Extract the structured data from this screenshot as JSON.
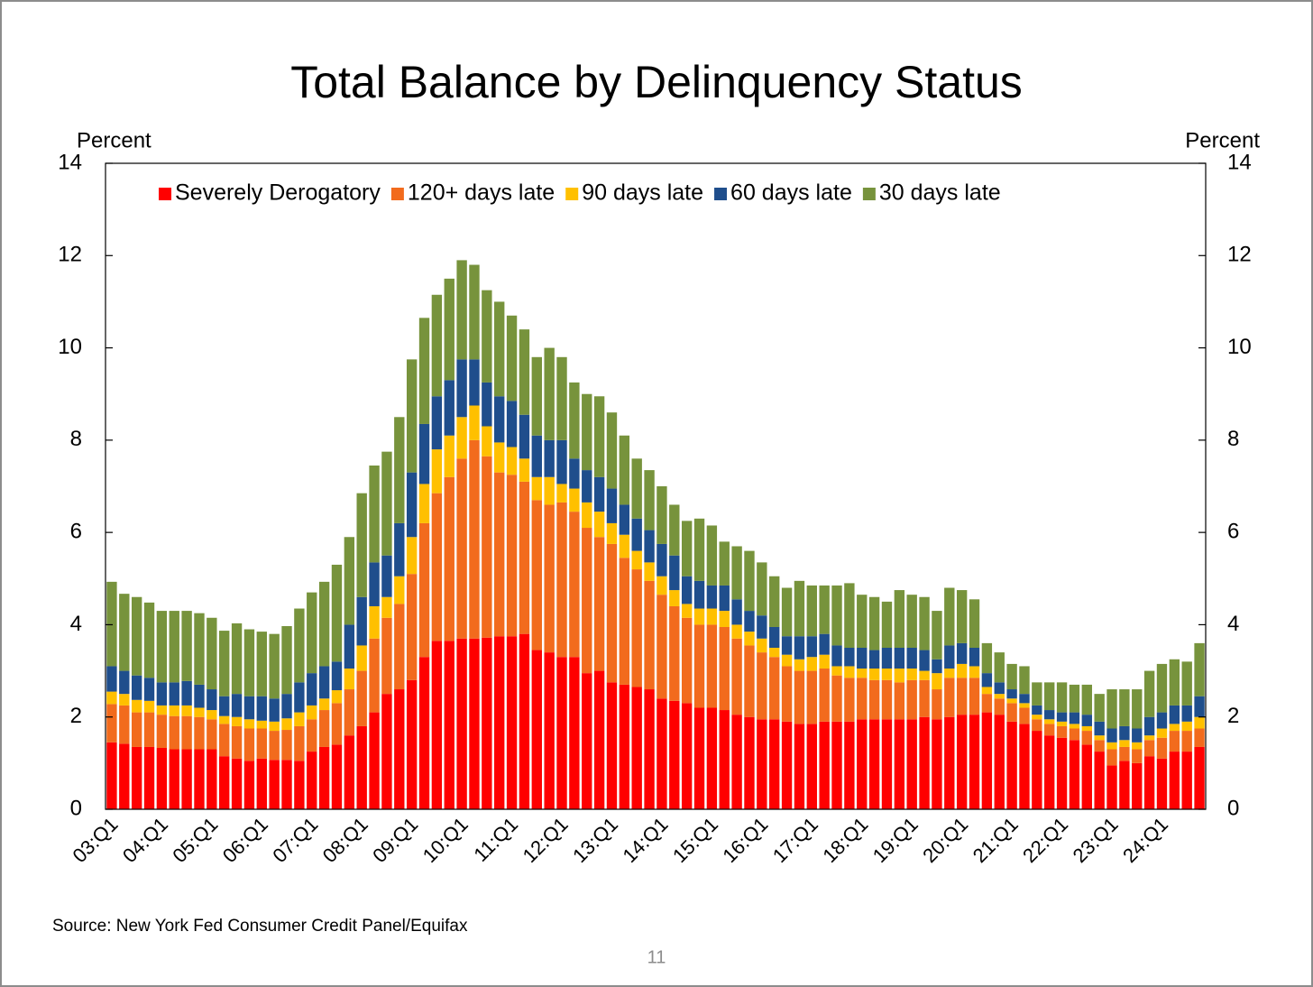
{
  "chart_data": {
    "type": "stacked_bar",
    "title": "Total Balance by Delinquency Status",
    "y_label": "Percent",
    "y2_label": "Percent",
    "source": "Source: New York Fed Consumer Credit Panel/Equifax",
    "categories": [
      "03:Q1",
      null,
      null,
      null,
      "04:Q1",
      null,
      null,
      null,
      "05:Q1",
      null,
      null,
      null,
      "06:Q1",
      null,
      null,
      null,
      "07:Q1",
      null,
      null,
      null,
      "08:Q1",
      null,
      null,
      null,
      "09:Q1",
      null,
      null,
      null,
      "10:Q1",
      null,
      null,
      null,
      "11:Q1",
      null,
      null,
      null,
      "12:Q1",
      null,
      null,
      null,
      "13:Q1",
      null,
      null,
      null,
      "14:Q1",
      null,
      null,
      null,
      "15:Q1",
      null,
      null,
      null,
      "16:Q1",
      null,
      null,
      null,
      "17:Q1",
      null,
      null,
      null,
      "18:Q1",
      null,
      null,
      null,
      "19:Q1",
      null,
      null,
      null,
      "20:Q1",
      null,
      null,
      null,
      "21:Q1",
      null,
      null,
      null,
      "22:Q1",
      null,
      null,
      null,
      "23:Q1",
      null,
      null,
      null,
      "24:Q1",
      null,
      null,
      null
    ],
    "series": [
      {
        "name": "Severely Derogatory",
        "color": "#ff0000",
        "values": [
          1.45,
          1.42,
          1.35,
          1.35,
          1.33,
          1.3,
          1.3,
          1.3,
          1.3,
          1.15,
          1.1,
          1.05,
          1.1,
          1.07,
          1.07,
          1.05,
          1.25,
          1.35,
          1.4,
          1.6,
          1.8,
          2.1,
          2.5,
          2.6,
          2.8,
          3.3,
          3.65,
          3.65,
          3.7,
          3.7,
          3.72,
          3.75,
          3.75,
          3.8,
          3.45,
          3.4,
          3.3,
          3.3,
          2.95,
          3.0,
          2.75,
          2.7,
          2.65,
          2.6,
          2.4,
          2.35,
          2.3,
          2.2,
          2.2,
          2.15,
          2.05,
          2.0,
          1.95,
          1.95,
          1.9,
          1.85,
          1.85,
          1.9,
          1.9,
          1.9,
          1.95,
          1.95,
          1.95,
          1.95,
          1.95,
          2.0,
          1.95,
          2.0,
          2.05,
          2.05,
          2.1,
          2.05,
          1.9,
          1.85,
          1.7,
          1.6,
          1.55,
          1.5,
          1.4,
          1.25,
          0.95,
          1.05,
          1.0,
          1.15,
          1.1,
          1.25,
          1.25,
          1.35
        ]
      },
      {
        "name": "120+ days late",
        "color": "#f26b1d",
        "values": [
          0.83,
          0.83,
          0.75,
          0.75,
          0.72,
          0.72,
          0.72,
          0.7,
          0.65,
          0.7,
          0.7,
          0.7,
          0.65,
          0.63,
          0.65,
          0.75,
          0.7,
          0.8,
          0.9,
          1.0,
          1.2,
          1.6,
          1.65,
          1.85,
          2.3,
          2.9,
          3.2,
          3.55,
          3.9,
          4.3,
          3.93,
          3.55,
          3.5,
          3.3,
          3.25,
          3.2,
          3.35,
          3.15,
          3.15,
          2.9,
          3.0,
          2.75,
          2.55,
          2.35,
          2.25,
          2.05,
          1.85,
          1.8,
          1.8,
          1.8,
          1.65,
          1.55,
          1.45,
          1.35,
          1.2,
          1.15,
          1.15,
          1.15,
          1.0,
          0.95,
          0.9,
          0.85,
          0.85,
          0.8,
          0.85,
          0.8,
          0.65,
          0.85,
          0.8,
          0.8,
          0.4,
          0.35,
          0.4,
          0.35,
          0.25,
          0.25,
          0.25,
          0.25,
          0.3,
          0.25,
          0.35,
          0.3,
          0.3,
          0.35,
          0.45,
          0.45,
          0.45,
          0.4
        ]
      },
      {
        "name": "90 days late",
        "color": "#ffc000",
        "values": [
          0.27,
          0.25,
          0.27,
          0.25,
          0.2,
          0.23,
          0.23,
          0.2,
          0.2,
          0.17,
          0.2,
          0.2,
          0.17,
          0.2,
          0.25,
          0.3,
          0.3,
          0.25,
          0.28,
          0.45,
          0.55,
          0.7,
          0.45,
          0.6,
          0.8,
          0.85,
          0.95,
          0.9,
          0.9,
          0.75,
          0.65,
          0.65,
          0.6,
          0.5,
          0.5,
          0.6,
          0.4,
          0.5,
          0.55,
          0.55,
          0.45,
          0.5,
          0.4,
          0.4,
          0.4,
          0.35,
          0.3,
          0.35,
          0.35,
          0.35,
          0.3,
          0.3,
          0.3,
          0.2,
          0.25,
          0.25,
          0.3,
          0.3,
          0.2,
          0.25,
          0.2,
          0.25,
          0.25,
          0.3,
          0.25,
          0.2,
          0.35,
          0.2,
          0.3,
          0.25,
          0.15,
          0.1,
          0.1,
          0.1,
          0.1,
          0.1,
          0.1,
          0.1,
          0.1,
          0.1,
          0.15,
          0.15,
          0.15,
          0.1,
          0.2,
          0.15,
          0.2,
          0.25
        ]
      },
      {
        "name": "60 days late",
        "color": "#1f4e8c",
        "values": [
          0.55,
          0.5,
          0.53,
          0.5,
          0.5,
          0.5,
          0.53,
          0.5,
          0.45,
          0.43,
          0.5,
          0.5,
          0.53,
          0.5,
          0.53,
          0.65,
          0.7,
          0.7,
          0.62,
          0.95,
          1.05,
          0.95,
          0.9,
          1.15,
          1.4,
          1.3,
          1.15,
          1.2,
          1.25,
          1.0,
          0.95,
          1.0,
          1.0,
          0.95,
          0.9,
          0.8,
          0.95,
          0.65,
          0.7,
          0.75,
          0.75,
          0.65,
          0.7,
          0.7,
          0.7,
          0.75,
          0.6,
          0.6,
          0.5,
          0.55,
          0.55,
          0.45,
          0.5,
          0.45,
          0.4,
          0.5,
          0.45,
          0.45,
          0.45,
          0.4,
          0.45,
          0.4,
          0.45,
          0.45,
          0.45,
          0.45,
          0.3,
          0.5,
          0.45,
          0.4,
          0.3,
          0.25,
          0.2,
          0.2,
          0.2,
          0.2,
          0.2,
          0.25,
          0.25,
          0.3,
          0.3,
          0.3,
          0.3,
          0.4,
          0.35,
          0.4,
          0.35,
          0.45
        ]
      },
      {
        "name": "30 days late",
        "color": "#77933c",
        "values": [
          1.83,
          1.67,
          1.7,
          1.63,
          1.55,
          1.55,
          1.52,
          1.55,
          1.55,
          1.42,
          1.53,
          1.45,
          1.4,
          1.4,
          1.47,
          1.6,
          1.75,
          1.83,
          2.1,
          1.9,
          2.25,
          2.1,
          2.25,
          2.3,
          2.45,
          2.3,
          2.2,
          2.2,
          2.15,
          2.05,
          2.0,
          2.05,
          1.85,
          1.85,
          1.7,
          2.0,
          1.8,
          1.65,
          1.65,
          1.75,
          1.65,
          1.5,
          1.3,
          1.3,
          1.25,
          1.1,
          1.2,
          1.35,
          1.3,
          0.95,
          1.15,
          1.3,
          1.15,
          1.1,
          1.05,
          1.2,
          1.1,
          1.05,
          1.3,
          1.4,
          1.15,
          1.15,
          1.0,
          1.25,
          1.15,
          1.15,
          1.05,
          1.25,
          1.15,
          1.05,
          0.65,
          0.65,
          0.55,
          0.6,
          0.5,
          0.6,
          0.65,
          0.6,
          0.65,
          0.6,
          0.85,
          0.8,
          0.85,
          1.0,
          1.05,
          1.0,
          0.95,
          1.15
        ]
      }
    ],
    "ylim": [
      0,
      14
    ],
    "yticks": [
      0,
      2,
      4,
      6,
      8,
      10,
      12,
      14
    ],
    "y2lim": [
      0,
      14
    ],
    "y2ticks": [
      0,
      2,
      4,
      6,
      8,
      10,
      12,
      14
    ],
    "legend": "top",
    "grid": false
  },
  "page_number": "11"
}
